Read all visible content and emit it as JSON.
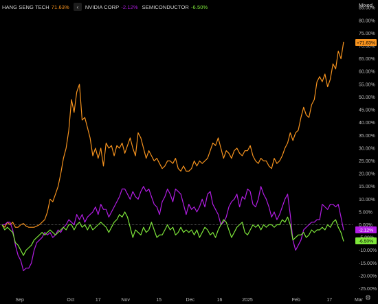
{
  "legend": {
    "collapse_icon": "chevron-left-icon",
    "items": [
      {
        "name": "HANG SENG TECH",
        "change": "71.63%",
        "color": "#f7931e"
      },
      {
        "name": "NVIDIA CORP",
        "change": "-2.12%",
        "color": "#b21de4"
      },
      {
        "name": "SEMICONDUCTOR",
        "change": "-6.50%",
        "color": "#7ee63a"
      }
    ]
  },
  "scale_mode": "Mixed",
  "settings_icon": "gear-icon",
  "chart_data": {
    "type": "line",
    "x_ticks": [
      "Sep",
      "Oct",
      "17",
      "Nov",
      "15",
      "Dec",
      "16",
      "2025",
      "Feb",
      "17",
      "Mar"
    ],
    "y_ticks": [
      "-25.00%",
      "-20.00%",
      "-15.00%",
      "-10.00%",
      "-5.00%",
      "0.00%",
      "5.00%",
      "10.00%",
      "15.00%",
      "20.00%",
      "25.00%",
      "30.00%",
      "35.00%",
      "40.00%",
      "45.00%",
      "50.00%",
      "55.00%",
      "60.00%",
      "65.00%",
      "70.00%",
      "75.00%",
      "80.00%",
      "85.00%"
    ],
    "ylim": [
      -27,
      88
    ],
    "xlim": [
      0,
      129
    ],
    "x_tick_positions": [
      9,
      35,
      49,
      63,
      80,
      96,
      111,
      125.2,
      150,
      167,
      182
    ],
    "grid": false,
    "zero_line": true,
    "series": [
      {
        "name": "HANG SENG TECH",
        "color": "#f7931e",
        "last_label": "+71.63%",
        "values": [
          0,
          -1,
          1,
          0,
          1,
          -1,
          -1,
          0,
          0.5,
          -0.5,
          -1,
          -1,
          -1,
          -0.5,
          0,
          1,
          2,
          5,
          10,
          9,
          12,
          15,
          20,
          26,
          30,
          37,
          49,
          44,
          52,
          55,
          41,
          42,
          38,
          34,
          27,
          30,
          26,
          30,
          23,
          32,
          30,
          31,
          27,
          31,
          30,
          32,
          28,
          31,
          34,
          30,
          27,
          36,
          34,
          30,
          26,
          29,
          27,
          25,
          26,
          24,
          22,
          23,
          25,
          25,
          24,
          26,
          22,
          21,
          23,
          21,
          21,
          22,
          25,
          23,
          25,
          24,
          25,
          26,
          29,
          32,
          31,
          34,
          30,
          26,
          29,
          28,
          26,
          29,
          30,
          28,
          27,
          29,
          29,
          31,
          27,
          25,
          24,
          26,
          25,
          25,
          23,
          22,
          26,
          24,
          25,
          27,
          30,
          32,
          36,
          33,
          36,
          37,
          42,
          46,
          43,
          42,
          47,
          49,
          56,
          58,
          56,
          59,
          54,
          57,
          63,
          61,
          68,
          65,
          71.63
        ]
      },
      {
        "name": "NVIDIA CORP",
        "color": "#b21de4",
        "last_label": "-2.12%",
        "values": [
          0,
          0,
          1,
          1,
          -2,
          -8,
          -12,
          -14,
          -18,
          -17,
          -17,
          -15,
          -10,
          -7,
          -6,
          -5,
          -3,
          -4,
          -3,
          -5,
          -4,
          -2,
          -3,
          -1,
          0,
          2,
          1,
          0,
          4,
          2,
          4,
          1,
          3,
          4,
          5,
          7,
          4,
          8,
          6,
          6,
          3,
          5,
          7,
          9,
          11,
          14,
          14,
          12,
          10,
          13,
          11,
          10,
          13,
          15,
          13,
          14,
          11,
          8,
          7,
          4,
          9,
          11,
          14,
          12,
          9,
          14,
          13,
          12,
          8,
          4,
          8,
          6,
          7,
          5,
          7,
          10,
          7,
          12,
          13,
          8,
          6,
          4,
          0,
          1,
          3,
          7,
          9,
          10,
          12,
          7,
          11,
          10,
          14,
          13,
          8,
          7,
          10,
          15,
          12,
          10,
          7,
          3,
          5,
          2,
          4,
          7,
          10,
          12,
          4,
          -6,
          -10,
          -8,
          -6,
          -2,
          -1,
          0,
          1,
          1,
          2,
          2,
          8,
          7,
          6,
          8,
          8,
          7,
          8,
          3,
          -2.12
        ]
      },
      {
        "name": "SEMICONDUCTOR",
        "color": "#7ee63a",
        "last_label": "-6.50%",
        "values": [
          0,
          -2,
          -1,
          -2,
          -3,
          -7,
          -8,
          -10,
          -12,
          -10,
          -9,
          -8,
          -6,
          -5,
          -4,
          -3,
          -4,
          -3,
          -2,
          -3,
          -4,
          -3,
          -2,
          -1,
          -2,
          0,
          0,
          -2,
          0,
          1,
          -1,
          0,
          -2,
          0,
          -2,
          -1,
          0,
          1,
          0,
          -1,
          -3,
          -1,
          1,
          2,
          4,
          3,
          5,
          3,
          -1,
          -5,
          -2,
          -3,
          -4,
          -1,
          -3,
          -2,
          1,
          -2,
          -5,
          -4,
          -4,
          -2,
          0,
          -2,
          -1,
          -4,
          -3,
          -1,
          -3,
          -2,
          -3,
          -2,
          -4,
          -2,
          -5,
          -3,
          -1,
          -2,
          -4,
          -3,
          -5,
          -2,
          0,
          2,
          1,
          -2,
          -5,
          -3,
          -1,
          0,
          1,
          -3,
          -4,
          -2,
          0,
          -1,
          0,
          -2,
          0,
          -1,
          0,
          0,
          -1,
          0,
          0,
          2,
          1,
          3,
          0,
          -6,
          -5,
          -4,
          -4,
          -3,
          -5,
          -4,
          -2,
          -3,
          -2,
          -2,
          -1,
          -2,
          0,
          -1,
          1,
          2,
          -1,
          -3,
          -6.5
        ]
      }
    ]
  }
}
